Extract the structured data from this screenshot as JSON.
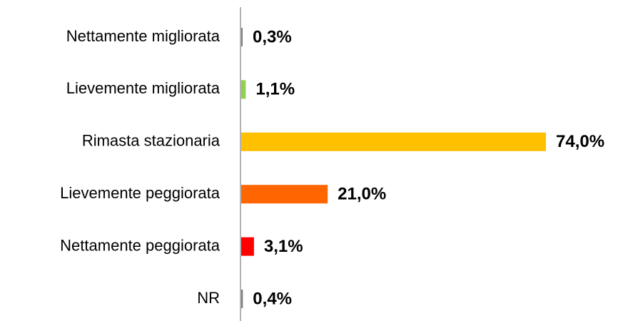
{
  "chart_data": {
    "type": "bar",
    "orientation": "horizontal",
    "categories": [
      "Nettamente migliorata",
      "Lievemente migliorata",
      "Rimasta stazionaria",
      "Lievemente peggiorata",
      "Nettamente peggiorata",
      "NR"
    ],
    "values": [
      0.3,
      1.1,
      74.0,
      21.0,
      3.1,
      0.4
    ],
    "value_labels": [
      "0,3%",
      "1,1%",
      "74,0%",
      "21,0%",
      "3,1%",
      "0,4%"
    ],
    "colors": [
      "#7f7f7f",
      "#92d050",
      "#ffc000",
      "#ff6600",
      "#ff0000",
      "#7f7f7f"
    ]
  }
}
